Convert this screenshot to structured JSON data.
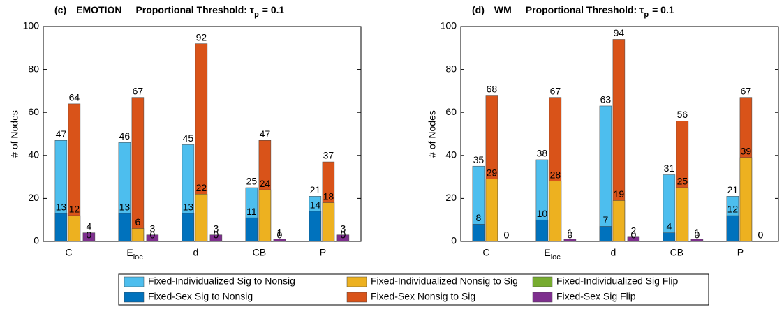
{
  "chart_data": [
    {
      "type": "bar",
      "panel": "(c)",
      "title": "EMOTION",
      "threshold_text": "Proportional Threshold: τ",
      "threshold_sub": "p",
      "threshold_value": "= 0.1",
      "categories": [
        "C",
        {
          "text": "E",
          "sub": "loc"
        },
        "d",
        "CB",
        "P"
      ],
      "ylabel": "# of Nodes",
      "ylim": [
        0,
        100
      ],
      "yticks": [
        0,
        20,
        40,
        60,
        80,
        100
      ],
      "grid": false,
      "series": [
        {
          "name": "Fixed-Individualized Sig to Nonsig",
          "color": "#4dbeee",
          "values": [
            47,
            46,
            45,
            25,
            21
          ]
        },
        {
          "name": "Fixed-Individualized Nonsig to Sig",
          "color": "#edb120",
          "values": [
            12,
            6,
            22,
            24,
            18
          ]
        },
        {
          "name": "Fixed-Individualized Sig Flip",
          "color": "#77ac30",
          "values": [
            0,
            0,
            0,
            0,
            0
          ]
        },
        {
          "name": "Fixed-Sex Sig to Nonsig",
          "color": "#0072bd",
          "values": [
            13,
            13,
            13,
            11,
            14
          ]
        },
        {
          "name": "Fixed-Sex Nonsig to Sig",
          "color": "#d95319",
          "values": [
            64,
            67,
            92,
            47,
            37
          ]
        },
        {
          "name": "Fixed-Sex Sig Flip",
          "color": "#7e2f8e",
          "values": [
            4,
            3,
            3,
            1,
            3
          ]
        }
      ]
    },
    {
      "type": "bar",
      "panel": "(d)",
      "title": "WM",
      "threshold_text": "Proportional Threshold: τ",
      "threshold_sub": "p",
      "threshold_value": "= 0.1",
      "categories": [
        "C",
        {
          "text": "E",
          "sub": "loc"
        },
        "d",
        "CB",
        "P"
      ],
      "ylabel": "# of Nodes",
      "ylim": [
        0,
        100
      ],
      "yticks": [
        0,
        20,
        40,
        60,
        80,
        100
      ],
      "grid": false,
      "series": [
        {
          "name": "Fixed-Individualized Sig to Nonsig",
          "color": "#4dbeee",
          "values": [
            35,
            38,
            63,
            31,
            21
          ]
        },
        {
          "name": "Fixed-Individualized Nonsig to Sig",
          "color": "#edb120",
          "values": [
            29,
            28,
            19,
            25,
            39
          ]
        },
        {
          "name": "Fixed-Individualized Sig Flip",
          "color": "#77ac30",
          "values": [
            0,
            0,
            0,
            0,
            0
          ]
        },
        {
          "name": "Fixed-Sex Sig to Nonsig",
          "color": "#0072bd",
          "values": [
            8,
            10,
            7,
            4,
            12
          ]
        },
        {
          "name": "Fixed-Sex Nonsig to Sig",
          "color": "#d95319",
          "values": [
            68,
            67,
            94,
            56,
            67
          ]
        },
        {
          "name": "Fixed-Sex Sig Flip",
          "color": "#7e2f8e",
          "values": [
            0,
            1,
            2,
            1,
            0
          ]
        }
      ]
    }
  ]
}
